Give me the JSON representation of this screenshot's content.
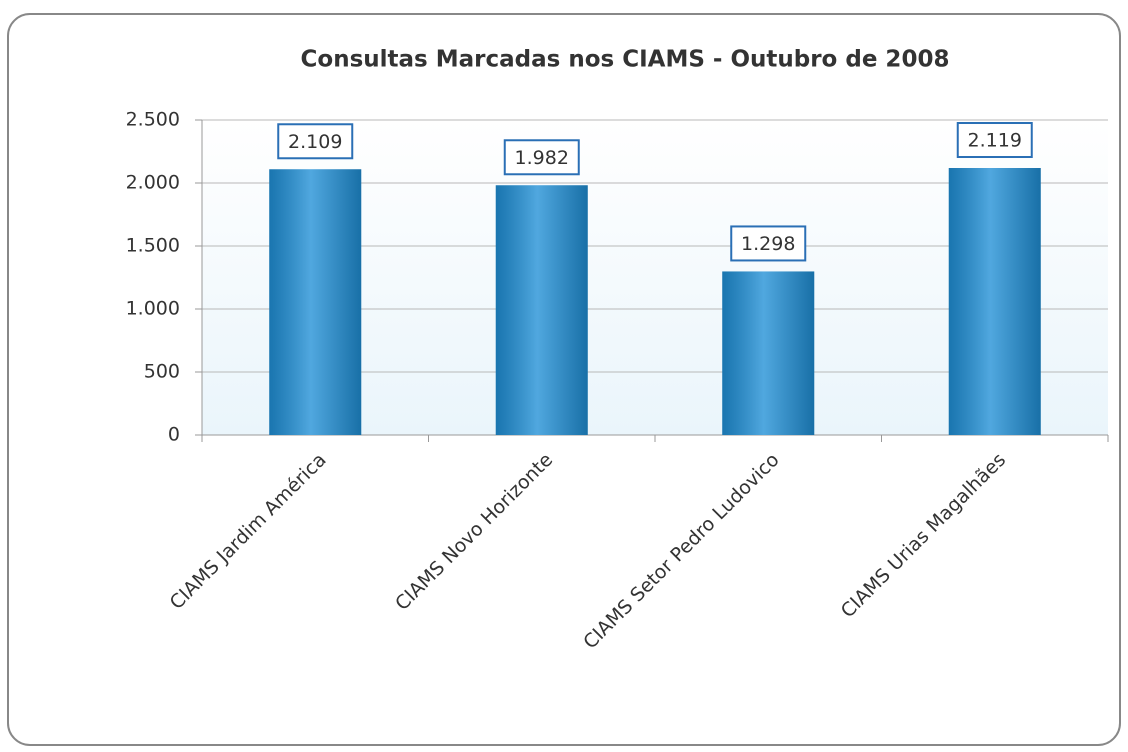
{
  "chart_data": {
    "type": "bar",
    "title": "Consultas Marcadas nos CIAMS - Outubro de 2008",
    "categories": [
      "CIAMS Jardim América",
      "CIAMS Novo Horizonte",
      "CIAMS Setor Pedro Ludovico",
      "CIAMS Urias Magalhães"
    ],
    "values": [
      2109,
      1982,
      1298,
      2119
    ],
    "value_labels": [
      "2.109",
      "1.982",
      "1.298",
      "2.119"
    ],
    "color": "#1f8fd6",
    "ylim": [
      0,
      2500
    ],
    "yticks": [
      0,
      500,
      {
        "value": 1000,
        "label": "1.000"
      },
      {
        "value": 1500,
        "label": "1.500"
      },
      {
        "value": 2000,
        "label": "2.000"
      },
      {
        "value": 2500,
        "label": "2.500"
      }
    ],
    "grid": true
  }
}
